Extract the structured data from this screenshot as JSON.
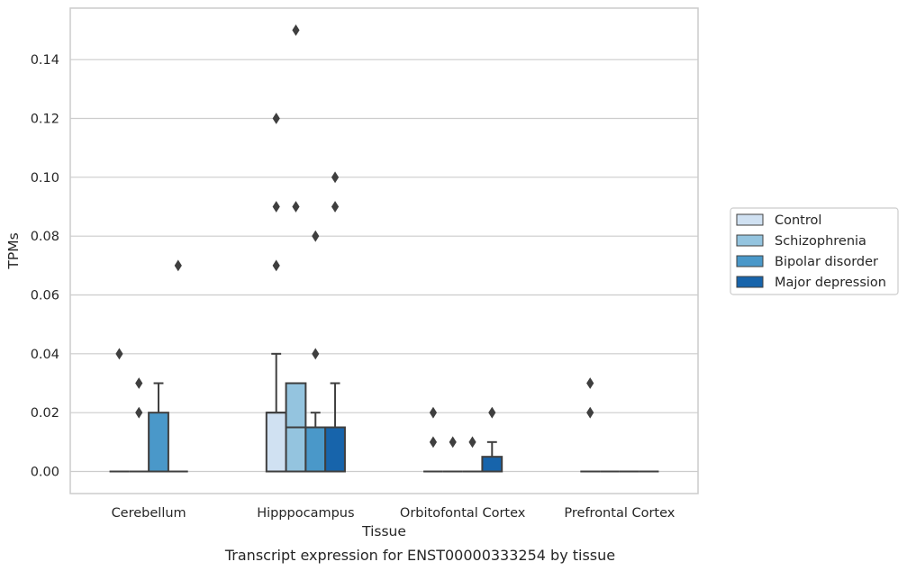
{
  "chart_data": {
    "type": "box",
    "xlabel": "Tissue",
    "ylabel": "TPMs",
    "caption": "Transcript expression for ENST00000333254 by tissue",
    "ylim": [
      -0.0075,
      0.1575
    ],
    "yticks": [
      "0.00",
      "0.02",
      "0.04",
      "0.06",
      "0.08",
      "0.10",
      "0.12",
      "0.14"
    ],
    "categories": [
      "Cerebellum",
      "Hipppocampus",
      "Orbitofontal Cortex",
      "Prefrontal Cortex"
    ],
    "grid": true,
    "legend_position": "right",
    "colors": {
      "Control": "#d0e1f2",
      "Schizophrenia": "#94c4df",
      "Bipolar disorder": "#4a98c9",
      "Major depression": "#1764ab"
    },
    "series": [
      {
        "name": "Control",
        "boxes": [
          {
            "q1": 0,
            "median": 0,
            "q3": 0,
            "whisker_low": 0,
            "whisker_high": 0,
            "outliers": [
              0.04
            ]
          },
          {
            "q1": 0,
            "median": 0.02,
            "q3": 0.02,
            "whisker_low": 0,
            "whisker_high": 0.04,
            "outliers": [
              0.07,
              0.09,
              0.12
            ]
          },
          {
            "q1": 0,
            "median": 0,
            "q3": 0,
            "whisker_low": 0,
            "whisker_high": 0,
            "outliers": [
              0.01,
              0.02
            ]
          },
          {
            "q1": 0,
            "median": 0,
            "q3": 0,
            "whisker_low": 0,
            "whisker_high": 0,
            "outliers": [
              0.02,
              0.03
            ]
          }
        ]
      },
      {
        "name": "Schizophrenia",
        "boxes": [
          {
            "q1": 0,
            "median": 0,
            "q3": 0,
            "whisker_low": 0,
            "whisker_high": 0,
            "outliers": [
              0.02,
              0.03
            ]
          },
          {
            "q1": 0,
            "median": 0.015,
            "q3": 0.03,
            "whisker_low": 0,
            "whisker_high": 0.03,
            "outliers": [
              0.09,
              0.15
            ]
          },
          {
            "q1": 0,
            "median": 0,
            "q3": 0,
            "whisker_low": 0,
            "whisker_high": 0,
            "outliers": [
              0.01
            ]
          },
          {
            "q1": 0,
            "median": 0,
            "q3": 0,
            "whisker_low": 0,
            "whisker_high": 0,
            "outliers": []
          }
        ]
      },
      {
        "name": "Bipolar disorder",
        "boxes": [
          {
            "q1": 0,
            "median": 0,
            "q3": 0.02,
            "whisker_low": 0,
            "whisker_high": 0.03,
            "outliers": []
          },
          {
            "q1": 0,
            "median": 0.015,
            "q3": 0.015,
            "whisker_low": 0,
            "whisker_high": 0.02,
            "outliers": [
              0.04,
              0.08
            ]
          },
          {
            "q1": 0,
            "median": 0,
            "q3": 0,
            "whisker_low": 0,
            "whisker_high": 0,
            "outliers": [
              0.01
            ]
          },
          {
            "q1": 0,
            "median": 0,
            "q3": 0,
            "whisker_low": 0,
            "whisker_high": 0,
            "outliers": []
          }
        ]
      },
      {
        "name": "Major depression",
        "boxes": [
          {
            "q1": 0,
            "median": 0,
            "q3": 0,
            "whisker_low": 0,
            "whisker_high": 0,
            "outliers": [
              0.07
            ]
          },
          {
            "q1": 0,
            "median": 0.015,
            "q3": 0.015,
            "whisker_low": 0,
            "whisker_high": 0.03,
            "outliers": [
              0.09,
              0.1
            ]
          },
          {
            "q1": 0,
            "median": 0,
            "q3": 0.005,
            "whisker_low": 0,
            "whisker_high": 0.01,
            "outliers": [
              0.02
            ]
          },
          {
            "q1": 0,
            "median": 0,
            "q3": 0,
            "whisker_low": 0,
            "whisker_high": 0,
            "outliers": []
          }
        ]
      }
    ]
  }
}
